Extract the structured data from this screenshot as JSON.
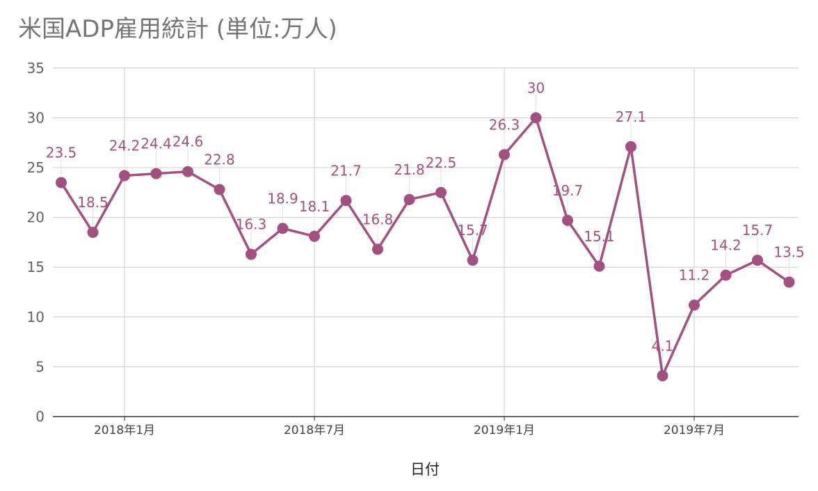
{
  "chart_data": {
    "type": "line",
    "title": "米国ADP雇用統計 (単位:万人)",
    "xlabel": "日付",
    "ylabel": "",
    "ylim": [
      0,
      35
    ],
    "yticks": [
      0,
      5,
      10,
      15,
      20,
      25,
      30,
      35
    ],
    "x_ticks": [
      "2018年1月",
      "2018年7月",
      "2019年1月",
      "2019年7月"
    ],
    "x": [
      "2017-11",
      "2017-12",
      "2018-01",
      "2018-02",
      "2018-03",
      "2018-04",
      "2018-05",
      "2018-06",
      "2018-07",
      "2018-08",
      "2018-09",
      "2018-10",
      "2018-11",
      "2018-12",
      "2019-01",
      "2019-02",
      "2019-03",
      "2019-04",
      "2019-05",
      "2019-06",
      "2019-07",
      "2019-08",
      "2019-09",
      "2019-10"
    ],
    "values": [
      23.5,
      18.5,
      24.2,
      24.4,
      24.6,
      22.8,
      16.3,
      18.9,
      18.1,
      21.7,
      16.8,
      21.8,
      22.5,
      15.7,
      26.3,
      30,
      19.7,
      15.1,
      27.1,
      4.1,
      11.2,
      14.2,
      15.7,
      13.5
    ],
    "data_labels": [
      "23.5",
      "18.5",
      "24.2",
      "24.4",
      "24.6",
      "22.8",
      "16.3",
      "18.9",
      "18.1",
      "21.7",
      "16.8",
      "21.8",
      "22.5",
      "15.7",
      "26.3",
      "30",
      "19.7",
      "15.1",
      "27.1",
      "4.1",
      "11.2",
      "14.2",
      "15.7",
      "13.5"
    ],
    "grid": true,
    "legend": "none",
    "color": "#a4507f"
  }
}
